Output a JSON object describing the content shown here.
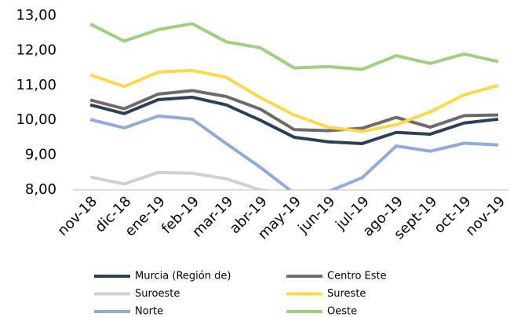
{
  "chart_data": {
    "type": "line",
    "categories": [
      "nov-18",
      "dic-18",
      "ene-19",
      "feb-19",
      "mar-19",
      "abr-19",
      "may-19",
      "jun-19",
      "jul-19",
      "ago-19",
      "sept-19",
      "oct-19",
      "nov-19"
    ],
    "series": [
      {
        "name": "Murcia (Región de)",
        "color": "#2e3f56",
        "values": [
          10.44,
          10.19,
          10.59,
          10.66,
          10.44,
          10.0,
          9.51,
          9.38,
          9.33,
          9.65,
          9.6,
          9.92,
          10.03
        ]
      },
      {
        "name": "Centro Este",
        "color": "#6f6a68",
        "values": [
          10.58,
          10.33,
          10.75,
          10.85,
          10.68,
          10.32,
          9.73,
          9.7,
          9.77,
          10.08,
          9.8,
          10.13,
          10.15
        ]
      },
      {
        "name": "Suroeste",
        "color": "#d0d0d0",
        "values": [
          8.37,
          8.17,
          8.5,
          8.48,
          8.32,
          8.0,
          7.9,
          7.9,
          7.9,
          7.9,
          7.9,
          7.9,
          7.98
        ]
      },
      {
        "name": "Sureste",
        "color": "#ffd84a",
        "values": [
          11.3,
          10.97,
          11.38,
          11.43,
          11.23,
          10.65,
          10.15,
          9.8,
          9.68,
          9.87,
          10.24,
          10.73,
          11.0
        ]
      },
      {
        "name": "Norte",
        "color": "#8faadc",
        "values": [
          10.02,
          9.78,
          10.12,
          10.03,
          9.33,
          8.65,
          7.9,
          7.95,
          8.35,
          9.26,
          9.11,
          9.34,
          9.29
        ]
      },
      {
        "name": "Oeste",
        "color": "#9ed07f",
        "values": [
          12.76,
          12.27,
          12.6,
          12.77,
          12.25,
          12.08,
          11.5,
          11.54,
          11.46,
          11.85,
          11.63,
          11.9,
          11.68
        ]
      }
    ],
    "ylim": [
      8,
      13
    ],
    "yticks": [
      {
        "value": 8,
        "label": "8,00"
      },
      {
        "value": 9,
        "label": "9,00"
      },
      {
        "value": 10,
        "label": "10,00"
      },
      {
        "value": 11,
        "label": "11,00"
      },
      {
        "value": 12,
        "label": "12,00"
      },
      {
        "value": 13,
        "label": "13,00"
      }
    ],
    "grid": false
  }
}
